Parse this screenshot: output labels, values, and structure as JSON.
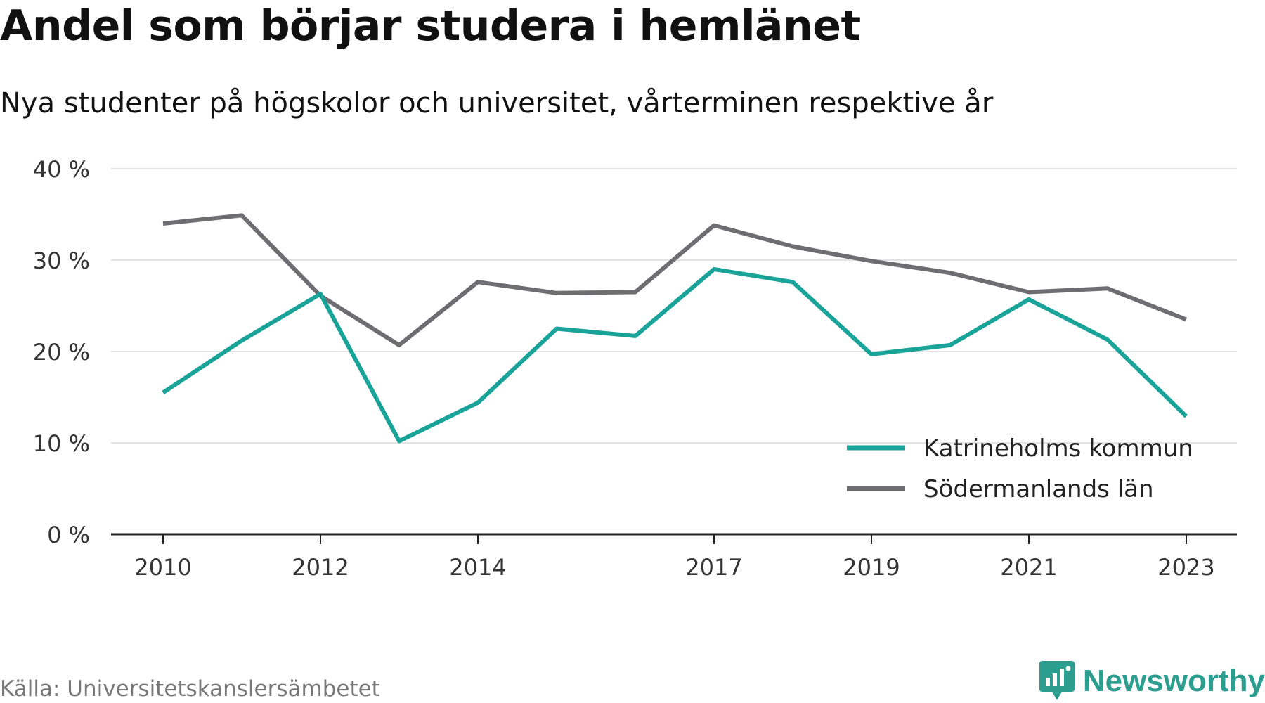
{
  "title": "Andel som börjar studera i hemlänet",
  "subtitle": "Nya studenter på högskolor och universitet, vårterminen respektive år",
  "source": "Källa: Universitetskanslersämbetet",
  "brand": {
    "name": "Newsworthy",
    "icon": "newsworthy-logo-icon",
    "color": "#2b9e8f"
  },
  "chart_data": {
    "type": "line",
    "x": [
      2010,
      2011,
      2012,
      2013,
      2014,
      2015,
      2016,
      2017,
      2018,
      2019,
      2020,
      2021,
      2022,
      2023
    ],
    "x_tick_labels": [
      "2010",
      "2012",
      "2014",
      "2017",
      "2019",
      "2021",
      "2023"
    ],
    "y_tick_labels": [
      "0 %",
      "10 %",
      "20 %",
      "30 %",
      "40 %"
    ],
    "ylim": [
      0,
      40
    ],
    "grid": true,
    "legend_position": "bottom-right",
    "series": [
      {
        "name": "Katrineholms kommun",
        "color": "#1aa399",
        "values": [
          15.5,
          21.2,
          26.3,
          10.2,
          14.4,
          22.5,
          21.7,
          29.0,
          27.6,
          19.7,
          20.7,
          25.7,
          21.3,
          12.9
        ]
      },
      {
        "name": "Södermanlands län",
        "color": "#6e6d72",
        "values": [
          34.0,
          34.9,
          26.1,
          20.7,
          27.6,
          26.4,
          26.5,
          33.8,
          31.5,
          29.9,
          28.6,
          26.5,
          26.9,
          23.5
        ]
      }
    ]
  }
}
